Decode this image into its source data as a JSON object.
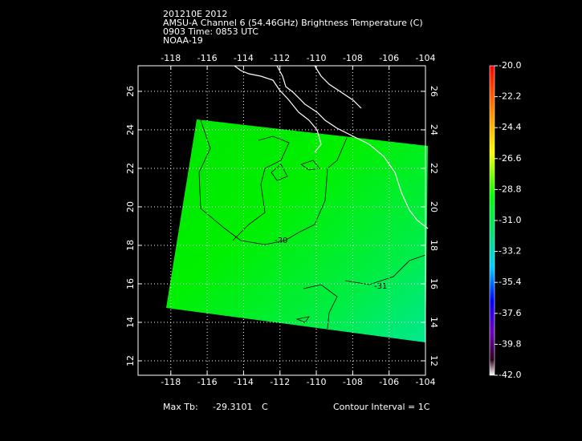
{
  "map": {
    "title_lines": [
      "201210E 2012",
      "AMSU-A Channel 6 (54.46GHz) Brightness Temperature (C)",
      "0903 Time: 0853 UTC",
      "NOAA-19"
    ],
    "xlim": [
      -119.8,
      -104
    ],
    "ylim": [
      11.25,
      27.33
    ],
    "xticks": [
      -118,
      -116,
      -114,
      -112,
      -110,
      -108,
      -106,
      -104
    ],
    "yticks": [
      12,
      14,
      16,
      18,
      20,
      22,
      24,
      26
    ],
    "grid": true,
    "contour_labels": [
      "-30",
      "-31"
    ],
    "colorbar": {
      "clim": [
        -42,
        -20
      ],
      "ticks": [
        {
          "value": -20,
          "label": "-20.0"
        },
        {
          "value": -22.2,
          "label": "-22.2"
        },
        {
          "value": -24.4,
          "label": "-24.4"
        },
        {
          "value": -26.6,
          "label": "-26.6"
        },
        {
          "value": -28.8,
          "label": "-28.8"
        },
        {
          "value": -31,
          "label": "-31.0"
        },
        {
          "value": -33.2,
          "label": "-33.2"
        },
        {
          "value": -35.4,
          "label": "-35.4"
        },
        {
          "value": -37.6,
          "label": "-37.6"
        },
        {
          "value": -39.8,
          "label": "-39.8"
        },
        {
          "value": -42,
          "label": "-42.0"
        }
      ]
    },
    "footer": {
      "max_label": "Max Tb:",
      "max_value": "-29.3101",
      "max_unit": "C",
      "contour_interval": "Contour Interval = 1C"
    }
  }
}
